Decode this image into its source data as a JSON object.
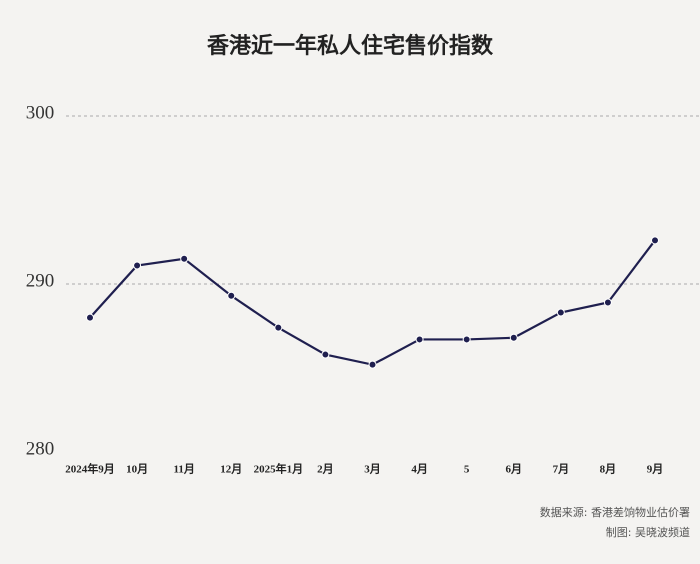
{
  "chart_data": {
    "type": "line",
    "title": "香港近一年私人住宅售价指数",
    "categories": [
      "2024年9月",
      "10月",
      "11月",
      "12月",
      "2025年1月",
      "2月",
      "3月",
      "4月",
      "5",
      "6月",
      "7月",
      "8月",
      "9月"
    ],
    "series": [
      {
        "name": "私人住宅售价指数",
        "color": "#1f1f4f",
        "values": [
          288.0,
          291.1,
          291.5,
          289.3,
          287.4,
          285.8,
          285.2,
          286.7,
          286.7,
          286.8,
          288.3,
          288.9,
          292.6
        ]
      }
    ],
    "ylim": [
      280,
      300
    ],
    "yticks": [
      280,
      290,
      300
    ],
    "grid": true,
    "source": "数据来源: 香港差饷物业估价署",
    "credit": "制图: 吴晓波频道"
  }
}
